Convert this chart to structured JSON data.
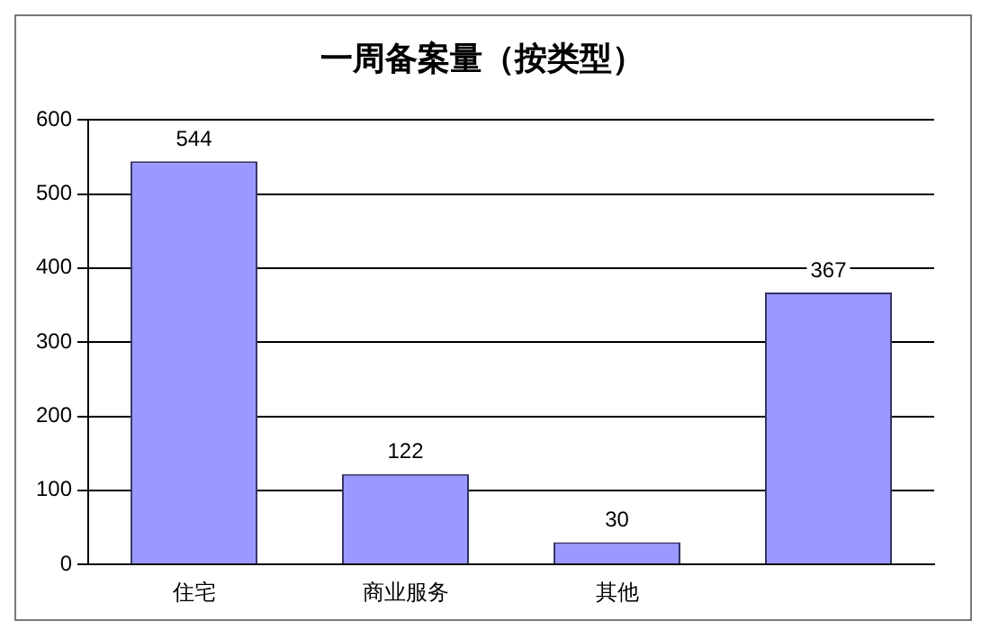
{
  "chart_data": {
    "type": "bar",
    "title": "一周备案量（按类型）",
    "categories": [
      "住宅",
      "商业服务",
      "其他",
      null
    ],
    "values": [
      544,
      122,
      30,
      367
    ],
    "color": "#9999ff",
    "data_labels": true,
    "ylim": [
      0,
      600
    ],
    "yticks": [
      0,
      100,
      200,
      300,
      400,
      500,
      600
    ],
    "grid": "y",
    "legend": false
  }
}
